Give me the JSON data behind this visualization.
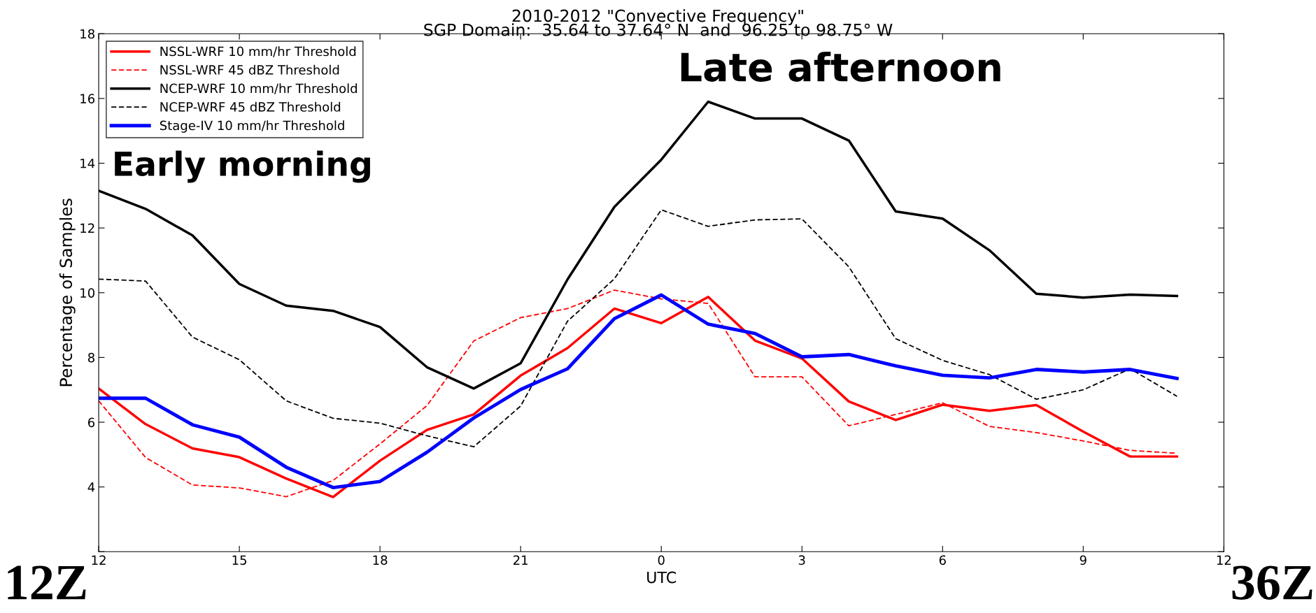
{
  "chart_data": {
    "type": "line",
    "title": "2010-2012 \"Convective Frequency\"",
    "subtitle": "SGP Domain:  35.64 to 37.64° N  and  96.25 to 98.75° W",
    "xlabel": "UTC",
    "ylabel": "Percentage of Samples",
    "categories": [
      "12",
      null,
      null,
      "15",
      null,
      null,
      "18",
      null,
      null,
      "21",
      null,
      null,
      "0",
      null,
      null,
      "3",
      null,
      null,
      "6",
      null,
      null,
      "9",
      null,
      null,
      "12"
    ],
    "series": [
      {
        "name": "NSSL-WRF 10 mm/hr Threshold",
        "color": "#ff0000",
        "line_style": "solid",
        "values": [
          7.04,
          5.94,
          5.19,
          4.92,
          4.26,
          3.69,
          4.81,
          5.76,
          6.24,
          7.44,
          8.29,
          9.51,
          9.06,
          9.87,
          8.52,
          7.97,
          6.64,
          6.07,
          6.54,
          6.35,
          6.53,
          5.71,
          4.94,
          4.94,
          null
        ]
      },
      {
        "name": "NSSL-WRF 45 dBZ Threshold",
        "color": "#ff0000",
        "line_style": "dashed",
        "values": [
          6.66,
          4.91,
          4.06,
          3.97,
          3.7,
          4.2,
          5.33,
          6.51,
          8.51,
          9.23,
          9.51,
          10.08,
          9.81,
          9.67,
          7.4,
          7.4,
          5.89,
          6.24,
          6.6,
          5.87,
          5.68,
          5.42,
          5.13,
          5.04,
          null
        ]
      },
      {
        "name": "NCEP-WRF 10 mm/hr Threshold",
        "color": "#000000",
        "line_style": "solid",
        "values": [
          13.15,
          12.59,
          11.77,
          10.27,
          9.6,
          9.44,
          8.94,
          7.7,
          7.04,
          7.82,
          10.41,
          12.65,
          14.11,
          15.9,
          15.38,
          15.38,
          14.7,
          12.51,
          12.29,
          11.31,
          9.97,
          9.85,
          9.94,
          9.9,
          null
        ]
      },
      {
        "name": "NCEP-WRF 45 dBZ Threshold",
        "color": "#000000",
        "line_style": "dashed",
        "values": [
          10.42,
          10.36,
          8.63,
          7.93,
          6.66,
          6.12,
          5.97,
          5.58,
          5.24,
          6.5,
          9.12,
          10.43,
          12.56,
          12.05,
          12.25,
          12.28,
          10.8,
          8.58,
          7.91,
          7.47,
          6.71,
          7.0,
          7.65,
          6.8,
          null
        ]
      },
      {
        "name": "Stage-IV 10 mm/hr Threshold",
        "color": "#0000ff",
        "line_style": "solid",
        "values": [
          6.74,
          6.74,
          5.92,
          5.54,
          4.61,
          3.98,
          4.17,
          5.07,
          6.13,
          7.01,
          7.65,
          9.2,
          9.93,
          9.03,
          8.74,
          8.02,
          8.09,
          7.74,
          7.45,
          7.37,
          7.63,
          7.55,
          7.63,
          7.35,
          null
        ]
      }
    ],
    "ylim": [
      2,
      18
    ],
    "yticks": [
      {
        "value": 2,
        "label": null
      },
      4,
      6,
      8,
      10,
      12,
      14,
      16,
      18
    ],
    "annotations": [
      "Early morning",
      "Late afternoon",
      "12Z",
      "36Z"
    ],
    "legend": "top left",
    "grid": false,
    "marker": "none"
  }
}
